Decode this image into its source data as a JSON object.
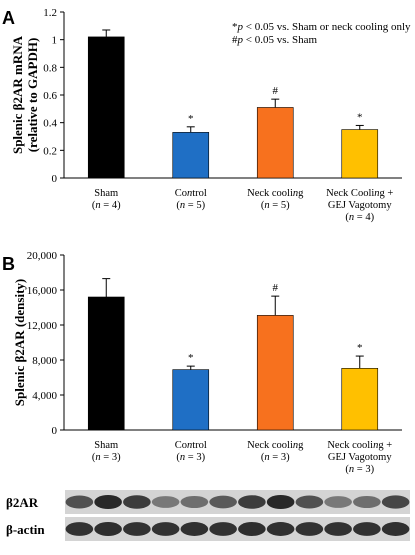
{
  "chart_data": [
    {
      "type": "bar",
      "panel": "A",
      "ylabel_lines": [
        "Splenic β2AR mRNA",
        "(relative to GAPDH)"
      ],
      "ylim": [
        0,
        1.2
      ],
      "yticks": [
        "0",
        "0.2",
        "0.4",
        "0.6",
        "0.8",
        "1",
        "1.2"
      ],
      "ytick_values": [
        0,
        0.2,
        0.4,
        0.6,
        0.8,
        1.0,
        1.2
      ],
      "category_lines": [
        [
          "Sham",
          "(n = 4)"
        ],
        [
          "Control",
          "(n = 5)"
        ],
        [
          "Neck cooling",
          "(n = 5)"
        ],
        [
          "Neck Cooling +",
          "GEJ Vagotomy",
          "(n = 4)"
        ]
      ],
      "values": [
        1.02,
        0.33,
        0.51,
        0.35
      ],
      "errors": [
        0.05,
        0.04,
        0.06,
        0.03
      ],
      "colors": [
        "#000000",
        "#1f6fc5",
        "#f7711e",
        "#ffc000"
      ],
      "markers": [
        "",
        "*",
        "#",
        "*"
      ],
      "legend_lines": [
        "*p < 0.05 vs. Sham or neck cooling only",
        "#p < 0.05 vs. Sham"
      ]
    },
    {
      "type": "bar",
      "panel": "B",
      "ylabel_lines": [
        "Splenic β2AR (density)"
      ],
      "ylim": [
        0,
        20000
      ],
      "yticks": [
        "0",
        "4,000",
        "8,000",
        "12,000",
        "16,000",
        "20,000"
      ],
      "ytick_values": [
        0,
        4000,
        8000,
        12000,
        16000,
        20000
      ],
      "category_lines": [
        [
          "Sham",
          "(n = 3)"
        ],
        [
          "Control",
          "(n = 3)"
        ],
        [
          "Neck cooling",
          "(n = 3)"
        ],
        [
          "Neck cooling +",
          "GEJ Vagotomy",
          "(n = 3)"
        ]
      ],
      "values": [
        15200,
        6900,
        13100,
        7050
      ],
      "errors": [
        2100,
        400,
        2200,
        1400
      ],
      "colors": [
        "#000000",
        "#1f6fc5",
        "#f7711e",
        "#ffc000"
      ],
      "markers": [
        "",
        "*",
        "#",
        "*"
      ]
    }
  ],
  "blot": {
    "rows": [
      {
        "label": "β2AR",
        "intensities": [
          0.75,
          0.95,
          0.85,
          0.55,
          0.6,
          0.7,
          0.85,
          0.95,
          0.75,
          0.55,
          0.6,
          0.8
        ]
      },
      {
        "label": "β-actin",
        "intensities": [
          0.9,
          0.92,
          0.9,
          0.9,
          0.91,
          0.9,
          0.92,
          0.91,
          0.9,
          0.9,
          0.9,
          0.91
        ]
      }
    ]
  }
}
